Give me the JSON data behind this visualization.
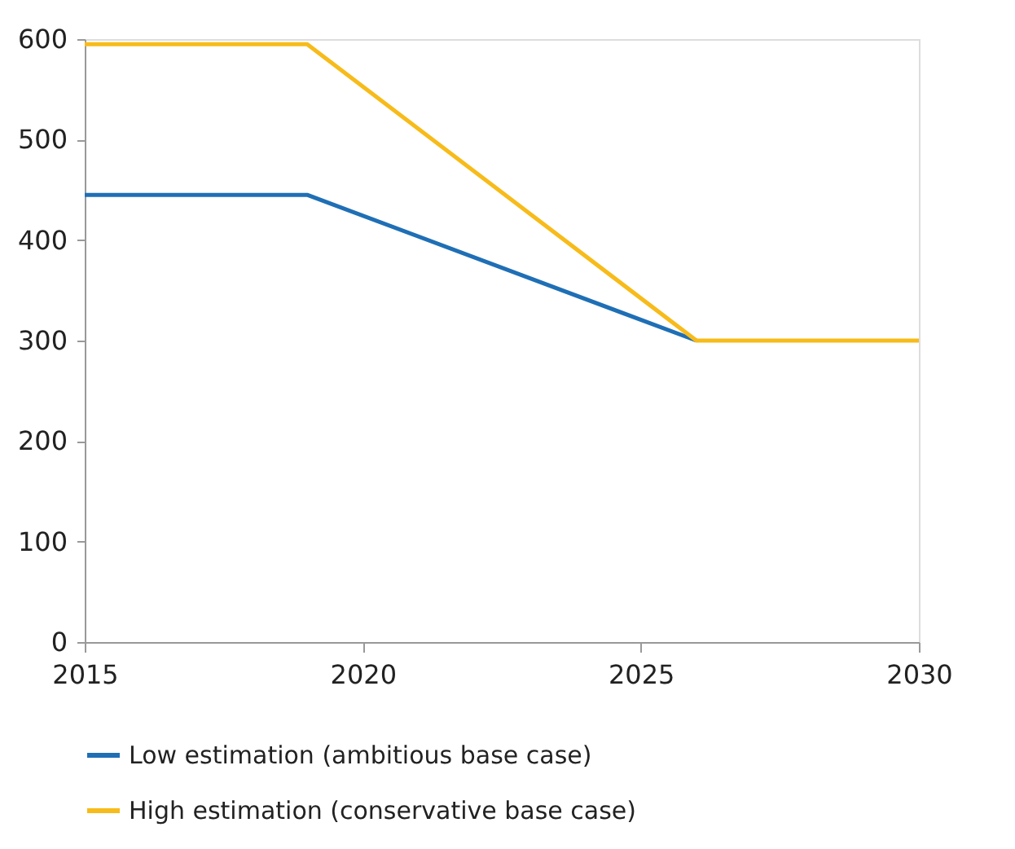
{
  "chart_data": {
    "type": "line",
    "x": [
      2015,
      2019,
      2026,
      2030
    ],
    "series": [
      {
        "name": "Low estimation (ambitious base case)",
        "color": "#1f6fb5",
        "values": [
          445,
          445,
          300,
          null
        ]
      },
      {
        "name": "High estimation (conservative base case)",
        "color": "#f7bb1a",
        "values": [
          595,
          595,
          300,
          300
        ]
      }
    ],
    "xlim": [
      2015,
      2030
    ],
    "xticks": [
      2015,
      2020,
      2025,
      2030
    ],
    "ylim": [
      0,
      600
    ],
    "yticks": [
      0,
      100,
      200,
      300,
      400,
      500,
      600
    ],
    "grid": false,
    "legend": "bottom",
    "line_style": "solid",
    "marker": "none"
  }
}
